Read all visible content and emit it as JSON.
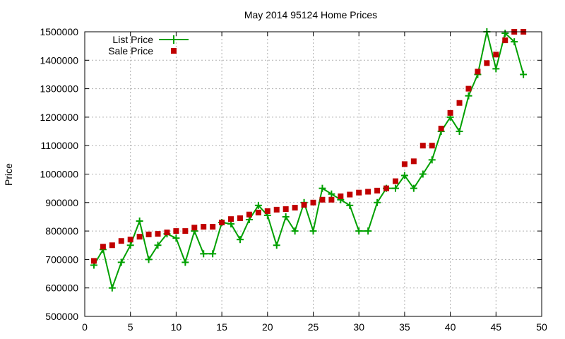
{
  "chart_data": {
    "type": "line",
    "title": "May 2014 95124 Home Prices",
    "xlabel": "",
    "ylabel": "Price",
    "xlim": [
      0,
      50
    ],
    "ylim": [
      500000,
      1500000
    ],
    "x_ticks": [
      "0",
      "5",
      "10",
      "15",
      "20",
      "25",
      "30",
      "35",
      "40",
      "45",
      "50"
    ],
    "y_ticks": [
      "500000",
      "600000",
      "700000",
      "800000",
      "900000",
      "1000000",
      "1100000",
      "1200000",
      "1300000",
      "1400000",
      "1500000"
    ],
    "grid": true,
    "legend_position": "top-left",
    "series": [
      {
        "name": "List Price",
        "style": "line-plus",
        "color": "#00a000",
        "points": [
          [
            1,
            680000
          ],
          [
            2,
            735000
          ],
          [
            3,
            600000
          ],
          [
            4,
            690000
          ],
          [
            5,
            750000
          ],
          [
            6,
            835000
          ],
          [
            7,
            700000
          ],
          [
            8,
            750000
          ],
          [
            9,
            790000
          ],
          [
            10,
            775000
          ],
          [
            11,
            690000
          ],
          [
            12,
            800000
          ],
          [
            13,
            720000
          ],
          [
            14,
            720000
          ],
          [
            15,
            830000
          ],
          [
            16,
            825000
          ],
          [
            17,
            770000
          ],
          [
            18,
            840000
          ],
          [
            19,
            890000
          ],
          [
            20,
            855000
          ],
          [
            21,
            750000
          ],
          [
            22,
            850000
          ],
          [
            23,
            800000
          ],
          [
            24,
            900000
          ],
          [
            25,
            800000
          ],
          [
            26,
            950000
          ],
          [
            27,
            930000
          ],
          [
            28,
            910000
          ],
          [
            29,
            890000
          ],
          [
            30,
            800000
          ],
          [
            31,
            800000
          ],
          [
            32,
            900000
          ],
          [
            33,
            950000
          ],
          [
            34,
            950000
          ],
          [
            35,
            995000
          ],
          [
            36,
            950000
          ],
          [
            37,
            1000000
          ],
          [
            38,
            1050000
          ],
          [
            39,
            1150000
          ],
          [
            40,
            1200000
          ],
          [
            41,
            1150000
          ],
          [
            42,
            1275000
          ],
          [
            43,
            1350000
          ],
          [
            44,
            1500000
          ],
          [
            45,
            1370000
          ],
          [
            46,
            1495000
          ],
          [
            47,
            1465000
          ],
          [
            48,
            1350000
          ]
        ]
      },
      {
        "name": "Sale Price",
        "style": "square",
        "color": "#c00000",
        "points": [
          [
            1,
            695000
          ],
          [
            2,
            745000
          ],
          [
            3,
            750000
          ],
          [
            4,
            765000
          ],
          [
            5,
            770000
          ],
          [
            6,
            780000
          ],
          [
            7,
            788000
          ],
          [
            8,
            790000
          ],
          [
            9,
            795000
          ],
          [
            10,
            800000
          ],
          [
            11,
            800000
          ],
          [
            12,
            812000
          ],
          [
            13,
            815000
          ],
          [
            14,
            815000
          ],
          [
            15,
            830000
          ],
          [
            16,
            842000
          ],
          [
            17,
            845000
          ],
          [
            18,
            858000
          ],
          [
            19,
            865000
          ],
          [
            20,
            870000
          ],
          [
            21,
            875000
          ],
          [
            22,
            877000
          ],
          [
            23,
            882000
          ],
          [
            24,
            892000
          ],
          [
            25,
            900000
          ],
          [
            26,
            910000
          ],
          [
            27,
            910000
          ],
          [
            28,
            922000
          ],
          [
            29,
            928000
          ],
          [
            30,
            935000
          ],
          [
            31,
            938000
          ],
          [
            32,
            942000
          ],
          [
            33,
            950000
          ],
          [
            34,
            975000
          ],
          [
            35,
            1035000
          ],
          [
            36,
            1045000
          ],
          [
            37,
            1100000
          ],
          [
            38,
            1100000
          ],
          [
            39,
            1160000
          ],
          [
            40,
            1215000
          ],
          [
            41,
            1250000
          ],
          [
            42,
            1300000
          ],
          [
            43,
            1360000
          ],
          [
            44,
            1390000
          ],
          [
            45,
            1420000
          ],
          [
            46,
            1470000
          ],
          [
            47,
            1500000
          ],
          [
            48,
            1500000
          ]
        ]
      }
    ]
  }
}
